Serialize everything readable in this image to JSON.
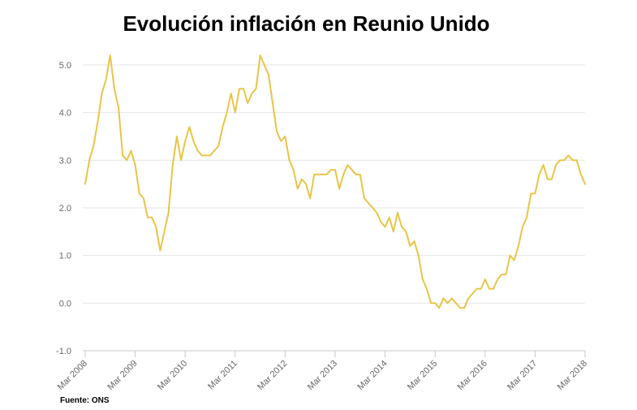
{
  "chart_data": {
    "type": "line",
    "title": "Evolución inflación en Reunio Unido",
    "source": "Fuente: ONS",
    "xlabel": "",
    "ylabel": "",
    "ylim": [
      -1.0,
      5.0
    ],
    "y_ticks": [
      "-1.0",
      "0.0",
      "1.0",
      "2.0",
      "3.0",
      "4.0",
      "5.0"
    ],
    "x_tick_labels": [
      "Mar 2008",
      "Mar 2009",
      "Mar 2010",
      "Mar 2011",
      "Mar 2012",
      "Mar 2013",
      "Mar 2014",
      "Mar 2015",
      "Mar 2016",
      "Mar 2017",
      "Mar 2018"
    ],
    "grid": true,
    "line_color": "#e8c547",
    "series": [
      {
        "x_start": "2008-03",
        "frequency": "monthly",
        "values": [
          2.5,
          3.0,
          3.3,
          3.8,
          4.4,
          4.7,
          5.2,
          4.5,
          4.1,
          3.1,
          3.0,
          3.2,
          2.9,
          2.3,
          2.2,
          1.8,
          1.8,
          1.6,
          1.1,
          1.5,
          1.9,
          2.9,
          3.5,
          3.0,
          3.4,
          3.7,
          3.4,
          3.2,
          3.1,
          3.1,
          3.1,
          3.2,
          3.3,
          3.7,
          4.0,
          4.4,
          4.0,
          4.5,
          4.5,
          4.2,
          4.4,
          4.5,
          5.2,
          5.0,
          4.8,
          4.2,
          3.6,
          3.4,
          3.5,
          3.0,
          2.8,
          2.4,
          2.6,
          2.5,
          2.2,
          2.7,
          2.7,
          2.7,
          2.7,
          2.8,
          2.8,
          2.4,
          2.7,
          2.9,
          2.8,
          2.7,
          2.7,
          2.2,
          2.1,
          2.0,
          1.9,
          1.7,
          1.6,
          1.8,
          1.5,
          1.9,
          1.6,
          1.5,
          1.2,
          1.3,
          1.0,
          0.5,
          0.3,
          0.0,
          0.0,
          -0.1,
          0.1,
          0.0,
          0.1,
          0.0,
          -0.1,
          -0.1,
          0.1,
          0.2,
          0.3,
          0.3,
          0.5,
          0.3,
          0.3,
          0.5,
          0.6,
          0.6,
          1.0,
          0.9,
          1.2,
          1.6,
          1.8,
          2.3,
          2.3,
          2.7,
          2.9,
          2.6,
          2.6,
          2.9,
          3.0,
          3.0,
          3.1,
          3.0,
          3.0,
          2.7,
          2.5
        ]
      }
    ]
  }
}
